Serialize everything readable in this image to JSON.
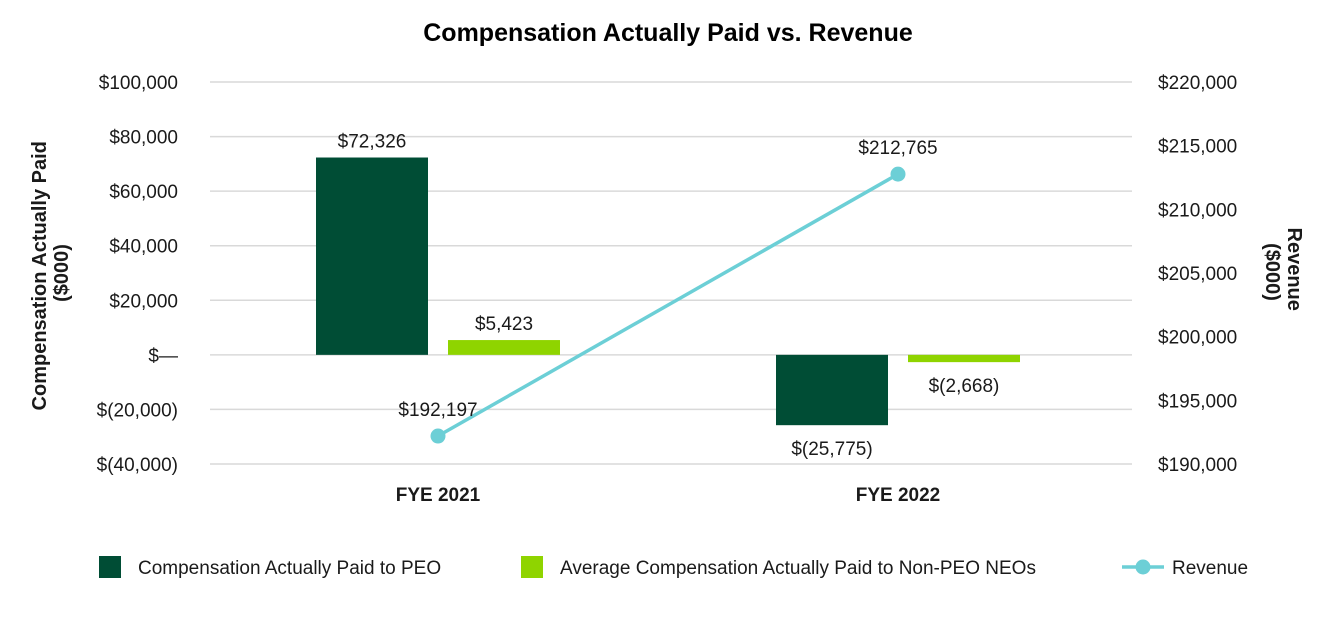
{
  "chart_data": {
    "type": "bar",
    "title": "Compensation Actually Paid vs. Revenue",
    "categories": [
      "FYE 2021",
      "FYE 2022"
    ],
    "y_left": {
      "label": "Compensation Actually Paid ($000)",
      "label_lines": [
        "Compensation Actually Paid",
        "($000)"
      ],
      "min": -40000,
      "max": 100000,
      "ticks": [
        100000,
        80000,
        60000,
        40000,
        20000,
        0,
        -20000,
        -40000
      ],
      "tick_labels": [
        "$100,000",
        "$80,000",
        "$60,000",
        "$40,000",
        "$20,000",
        "$—",
        "$(20,000)",
        "$(40,000)"
      ]
    },
    "y_right": {
      "label": "Revenue ($000)",
      "label_lines": [
        "Revenue",
        "($000)"
      ],
      "min": 190000,
      "max": 220000,
      "ticks": [
        220000,
        215000,
        210000,
        205000,
        200000,
        195000,
        190000
      ],
      "tick_labels": [
        "$220,000",
        "$215,000",
        "$210,000",
        "$205,000",
        "$200,000",
        "$195,000",
        "$190,000"
      ]
    },
    "series": [
      {
        "name": "Compensation Actually Paid to PEO",
        "type": "bar",
        "axis": "left",
        "color": "#004d35",
        "values": [
          72326,
          -25775
        ],
        "labels": [
          "$72,326",
          "$(25,775)"
        ]
      },
      {
        "name": "Average Compensation Actually Paid to Non-PEO NEOs",
        "type": "bar",
        "axis": "left",
        "color": "#8fd400",
        "values": [
          5423,
          -2668
        ],
        "labels": [
          "$5,423",
          "$(2,668)"
        ]
      },
      {
        "name": "Revenue",
        "type": "line",
        "axis": "right",
        "color": "#6ccfd6",
        "values": [
          192197,
          212765
        ],
        "labels": [
          "$192,197",
          "$212,765"
        ]
      }
    ],
    "grid": true,
    "legend_position": "bottom"
  }
}
